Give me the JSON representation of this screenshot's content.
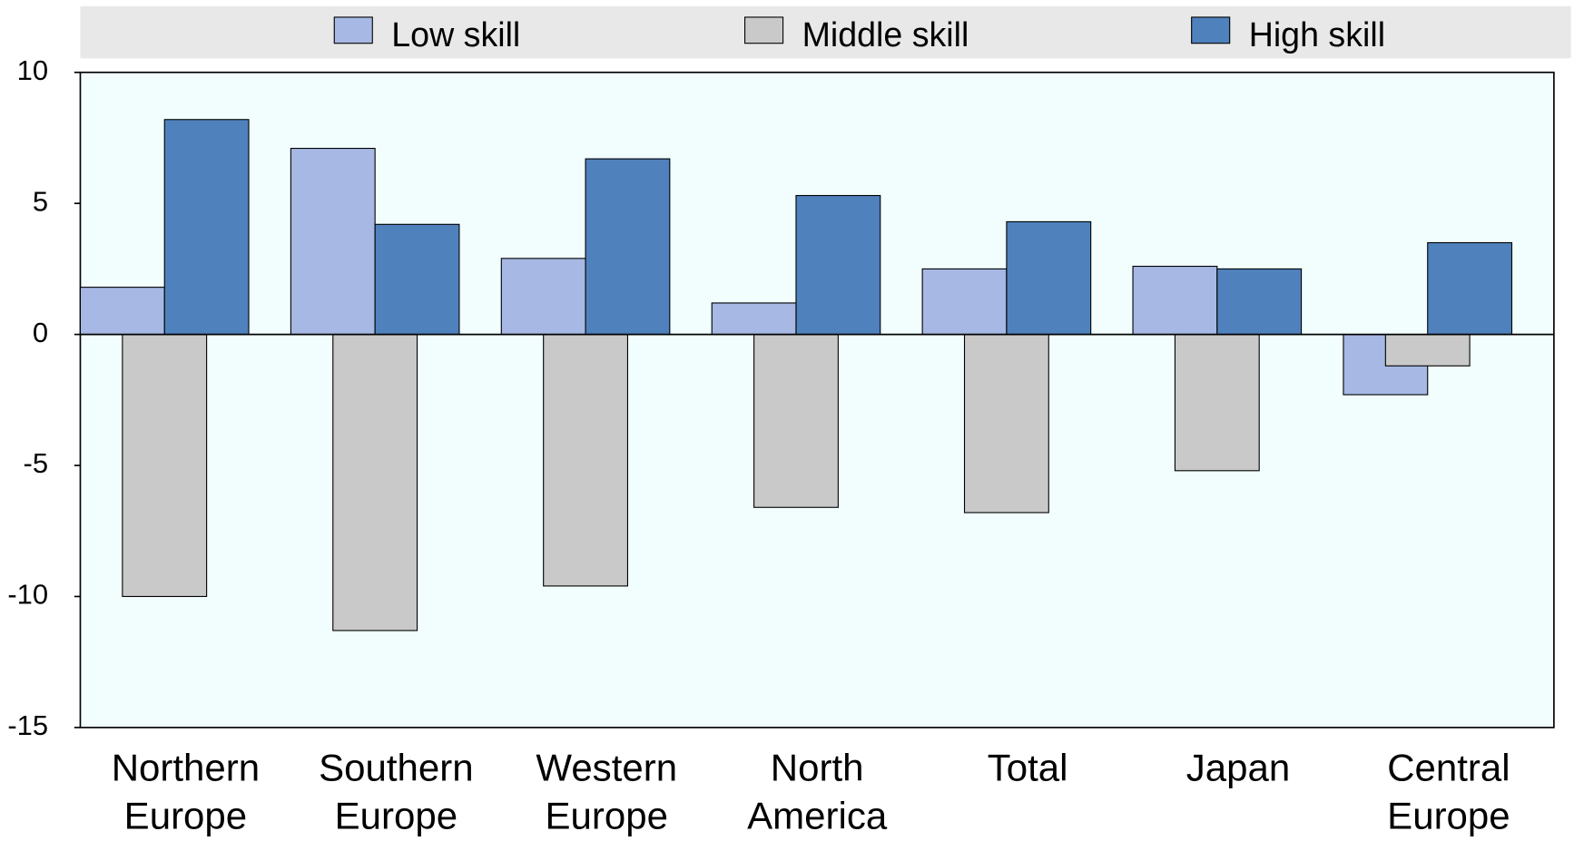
{
  "chart_data": {
    "type": "bar",
    "categories": [
      "Northern Europe",
      "Southern Europe",
      "Western Europe",
      "North America",
      "Total",
      "Japan",
      "Central Europe"
    ],
    "series": [
      {
        "name": "Low skill",
        "color": "#a6b8e3",
        "values": [
          1.8,
          7.1,
          2.9,
          1.2,
          2.5,
          2.6,
          -2.3
        ]
      },
      {
        "name": "Middle skill",
        "color": "#c9c9c9",
        "values": [
          -10.0,
          -11.3,
          -9.6,
          -6.6,
          -6.8,
          -5.2,
          -1.2
        ]
      },
      {
        "name": "High skill",
        "color": "#4f81bd",
        "values": [
          8.2,
          4.2,
          6.7,
          5.3,
          4.3,
          2.5,
          3.5
        ]
      }
    ],
    "ylim": [
      -15,
      10
    ],
    "yticks": [
      -15,
      -10,
      -5,
      0,
      5,
      10
    ],
    "legend": "top"
  }
}
